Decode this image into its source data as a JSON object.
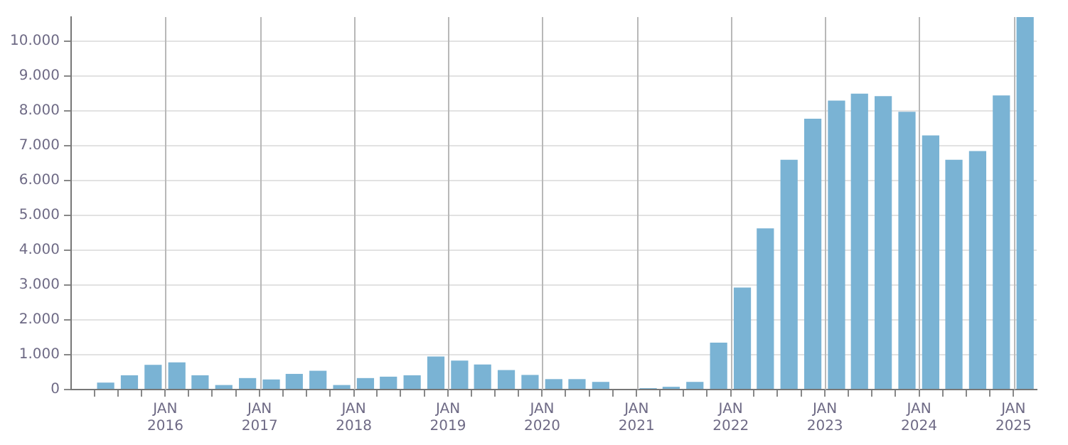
{
  "chart_data": {
    "type": "bar",
    "color": "#7ab3d4",
    "x": [
      "2015-05-15",
      "2015-08-15",
      "2015-11-15",
      "2016-02-15",
      "2016-05-15",
      "2016-08-15",
      "2016-11-15",
      "2017-02-15",
      "2017-05-15",
      "2017-08-15",
      "2017-11-15",
      "2018-02-15",
      "2018-05-15",
      "2018-08-15",
      "2018-11-15",
      "2019-02-15",
      "2019-05-15",
      "2019-08-15",
      "2019-11-15",
      "2020-02-15",
      "2020-05-15",
      "2020-08-15",
      "2020-11-15",
      "2021-02-15",
      "2021-05-15",
      "2021-08-15",
      "2021-11-15",
      "2022-02-15",
      "2022-05-15",
      "2022-08-15",
      "2022-11-15",
      "2023-02-15",
      "2023-05-15",
      "2023-08-15",
      "2023-11-15",
      "2024-02-15",
      "2024-05-15",
      "2024-08-15",
      "2024-11-15",
      "2025-02-15"
    ],
    "values": [
      200,
      410,
      710,
      780,
      410,
      130,
      330,
      290,
      450,
      540,
      130,
      330,
      370,
      410,
      950,
      830,
      720,
      560,
      420,
      300,
      300,
      220,
      0,
      40,
      80,
      220,
      1350,
      2930,
      4630,
      6600,
      7780,
      8300,
      8500,
      8430,
      7980,
      7300,
      6600,
      6850,
      8450,
      10700
    ],
    "xlim": [
      "2015-01-01",
      "2025-04-01"
    ],
    "xticks": [
      {
        "value": "2015-04-01",
        "label": null
      },
      {
        "value": "2015-07-01",
        "label": null
      },
      {
        "value": "2015-10-01",
        "label": null
      },
      {
        "value": "2016-01-01",
        "label": "JAN 2016"
      },
      {
        "value": "2016-04-01",
        "label": null
      },
      {
        "value": "2016-07-01",
        "label": null
      },
      {
        "value": "2016-10-01",
        "label": null
      },
      {
        "value": "2017-01-01",
        "label": "JAN 2017"
      },
      {
        "value": "2017-04-01",
        "label": null
      },
      {
        "value": "2017-07-01",
        "label": null
      },
      {
        "value": "2017-10-01",
        "label": null
      },
      {
        "value": "2018-01-01",
        "label": "JAN 2018"
      },
      {
        "value": "2018-04-01",
        "label": null
      },
      {
        "value": "2018-07-01",
        "label": null
      },
      {
        "value": "2018-10-01",
        "label": null
      },
      {
        "value": "2019-01-01",
        "label": "JAN 2019"
      },
      {
        "value": "2019-04-01",
        "label": null
      },
      {
        "value": "2019-07-01",
        "label": null
      },
      {
        "value": "2019-10-01",
        "label": null
      },
      {
        "value": "2020-01-01",
        "label": "JAN 2020"
      },
      {
        "value": "2020-04-01",
        "label": null
      },
      {
        "value": "2020-07-01",
        "label": null
      },
      {
        "value": "2020-10-01",
        "label": null
      },
      {
        "value": "2021-01-01",
        "label": "JAN 2021"
      },
      {
        "value": "2021-04-01",
        "label": null
      },
      {
        "value": "2021-07-01",
        "label": null
      },
      {
        "value": "2021-10-01",
        "label": null
      },
      {
        "value": "2022-01-01",
        "label": "JAN 2022"
      },
      {
        "value": "2022-04-01",
        "label": null
      },
      {
        "value": "2022-07-01",
        "label": null
      },
      {
        "value": "2022-10-01",
        "label": null
      },
      {
        "value": "2023-01-01",
        "label": "JAN 2023"
      },
      {
        "value": "2023-04-01",
        "label": null
      },
      {
        "value": "2023-07-01",
        "label": null
      },
      {
        "value": "2023-10-01",
        "label": null
      },
      {
        "value": "2024-01-01",
        "label": "JAN 2024"
      },
      {
        "value": "2024-04-01",
        "label": null
      },
      {
        "value": "2024-07-01",
        "label": null
      },
      {
        "value": "2024-10-01",
        "label": null
      },
      {
        "value": "2025-01-01",
        "label": "JAN 2025"
      }
    ],
    "ylim": [
      0,
      10700
    ],
    "yticks": [
      {
        "value": 0,
        "label": "0"
      },
      {
        "value": 1000,
        "label": "1.000"
      },
      {
        "value": 2000,
        "label": "2.000"
      },
      {
        "value": 3000,
        "label": "3.000"
      },
      {
        "value": 4000,
        "label": "4.000"
      },
      {
        "value": 5000,
        "label": "5.000"
      },
      {
        "value": 6000,
        "label": "6.000"
      },
      {
        "value": 7000,
        "label": "7.000"
      },
      {
        "value": 8000,
        "label": "8.000"
      },
      {
        "value": 9000,
        "label": "9.000"
      },
      {
        "value": 10000,
        "label": "10.000"
      }
    ],
    "grid": true,
    "legend": false
  }
}
